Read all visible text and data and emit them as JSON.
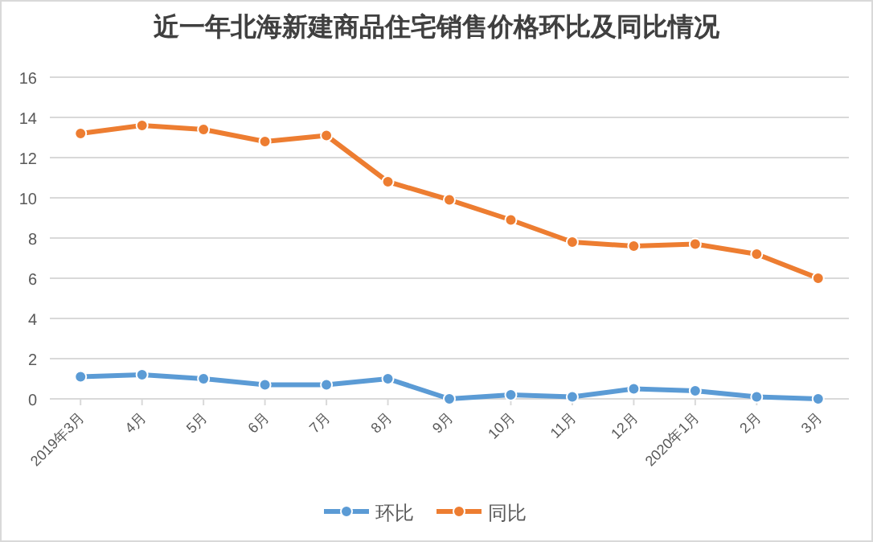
{
  "chart_data": {
    "type": "line",
    "title": "近一年北海新建商品住宅销售价格环比及同比情况",
    "categories": [
      "2019年3月",
      "4月",
      "5月",
      "6月",
      "7月",
      "8月",
      "9月",
      "10月",
      "11月",
      "12月",
      "2020年1月",
      "2月",
      "3月"
    ],
    "series": [
      {
        "name": "环比",
        "color": "#5b9bd5",
        "values": [
          1.1,
          1.2,
          1.0,
          0.7,
          0.7,
          1.0,
          0.0,
          0.2,
          0.1,
          0.5,
          0.4,
          0.1,
          0.0
        ]
      },
      {
        "name": "同比",
        "color": "#ed7d31",
        "values": [
          13.2,
          13.6,
          13.4,
          12.8,
          13.1,
          10.8,
          9.9,
          8.9,
          7.8,
          7.6,
          7.7,
          7.2,
          6.0
        ]
      }
    ],
    "ylim": [
      0,
      16
    ],
    "yticks": [
      0,
      2,
      4,
      6,
      8,
      10,
      12,
      14,
      16
    ],
    "grid": "y",
    "legend": "bottom",
    "marker": "circle",
    "line_style": "solid"
  }
}
